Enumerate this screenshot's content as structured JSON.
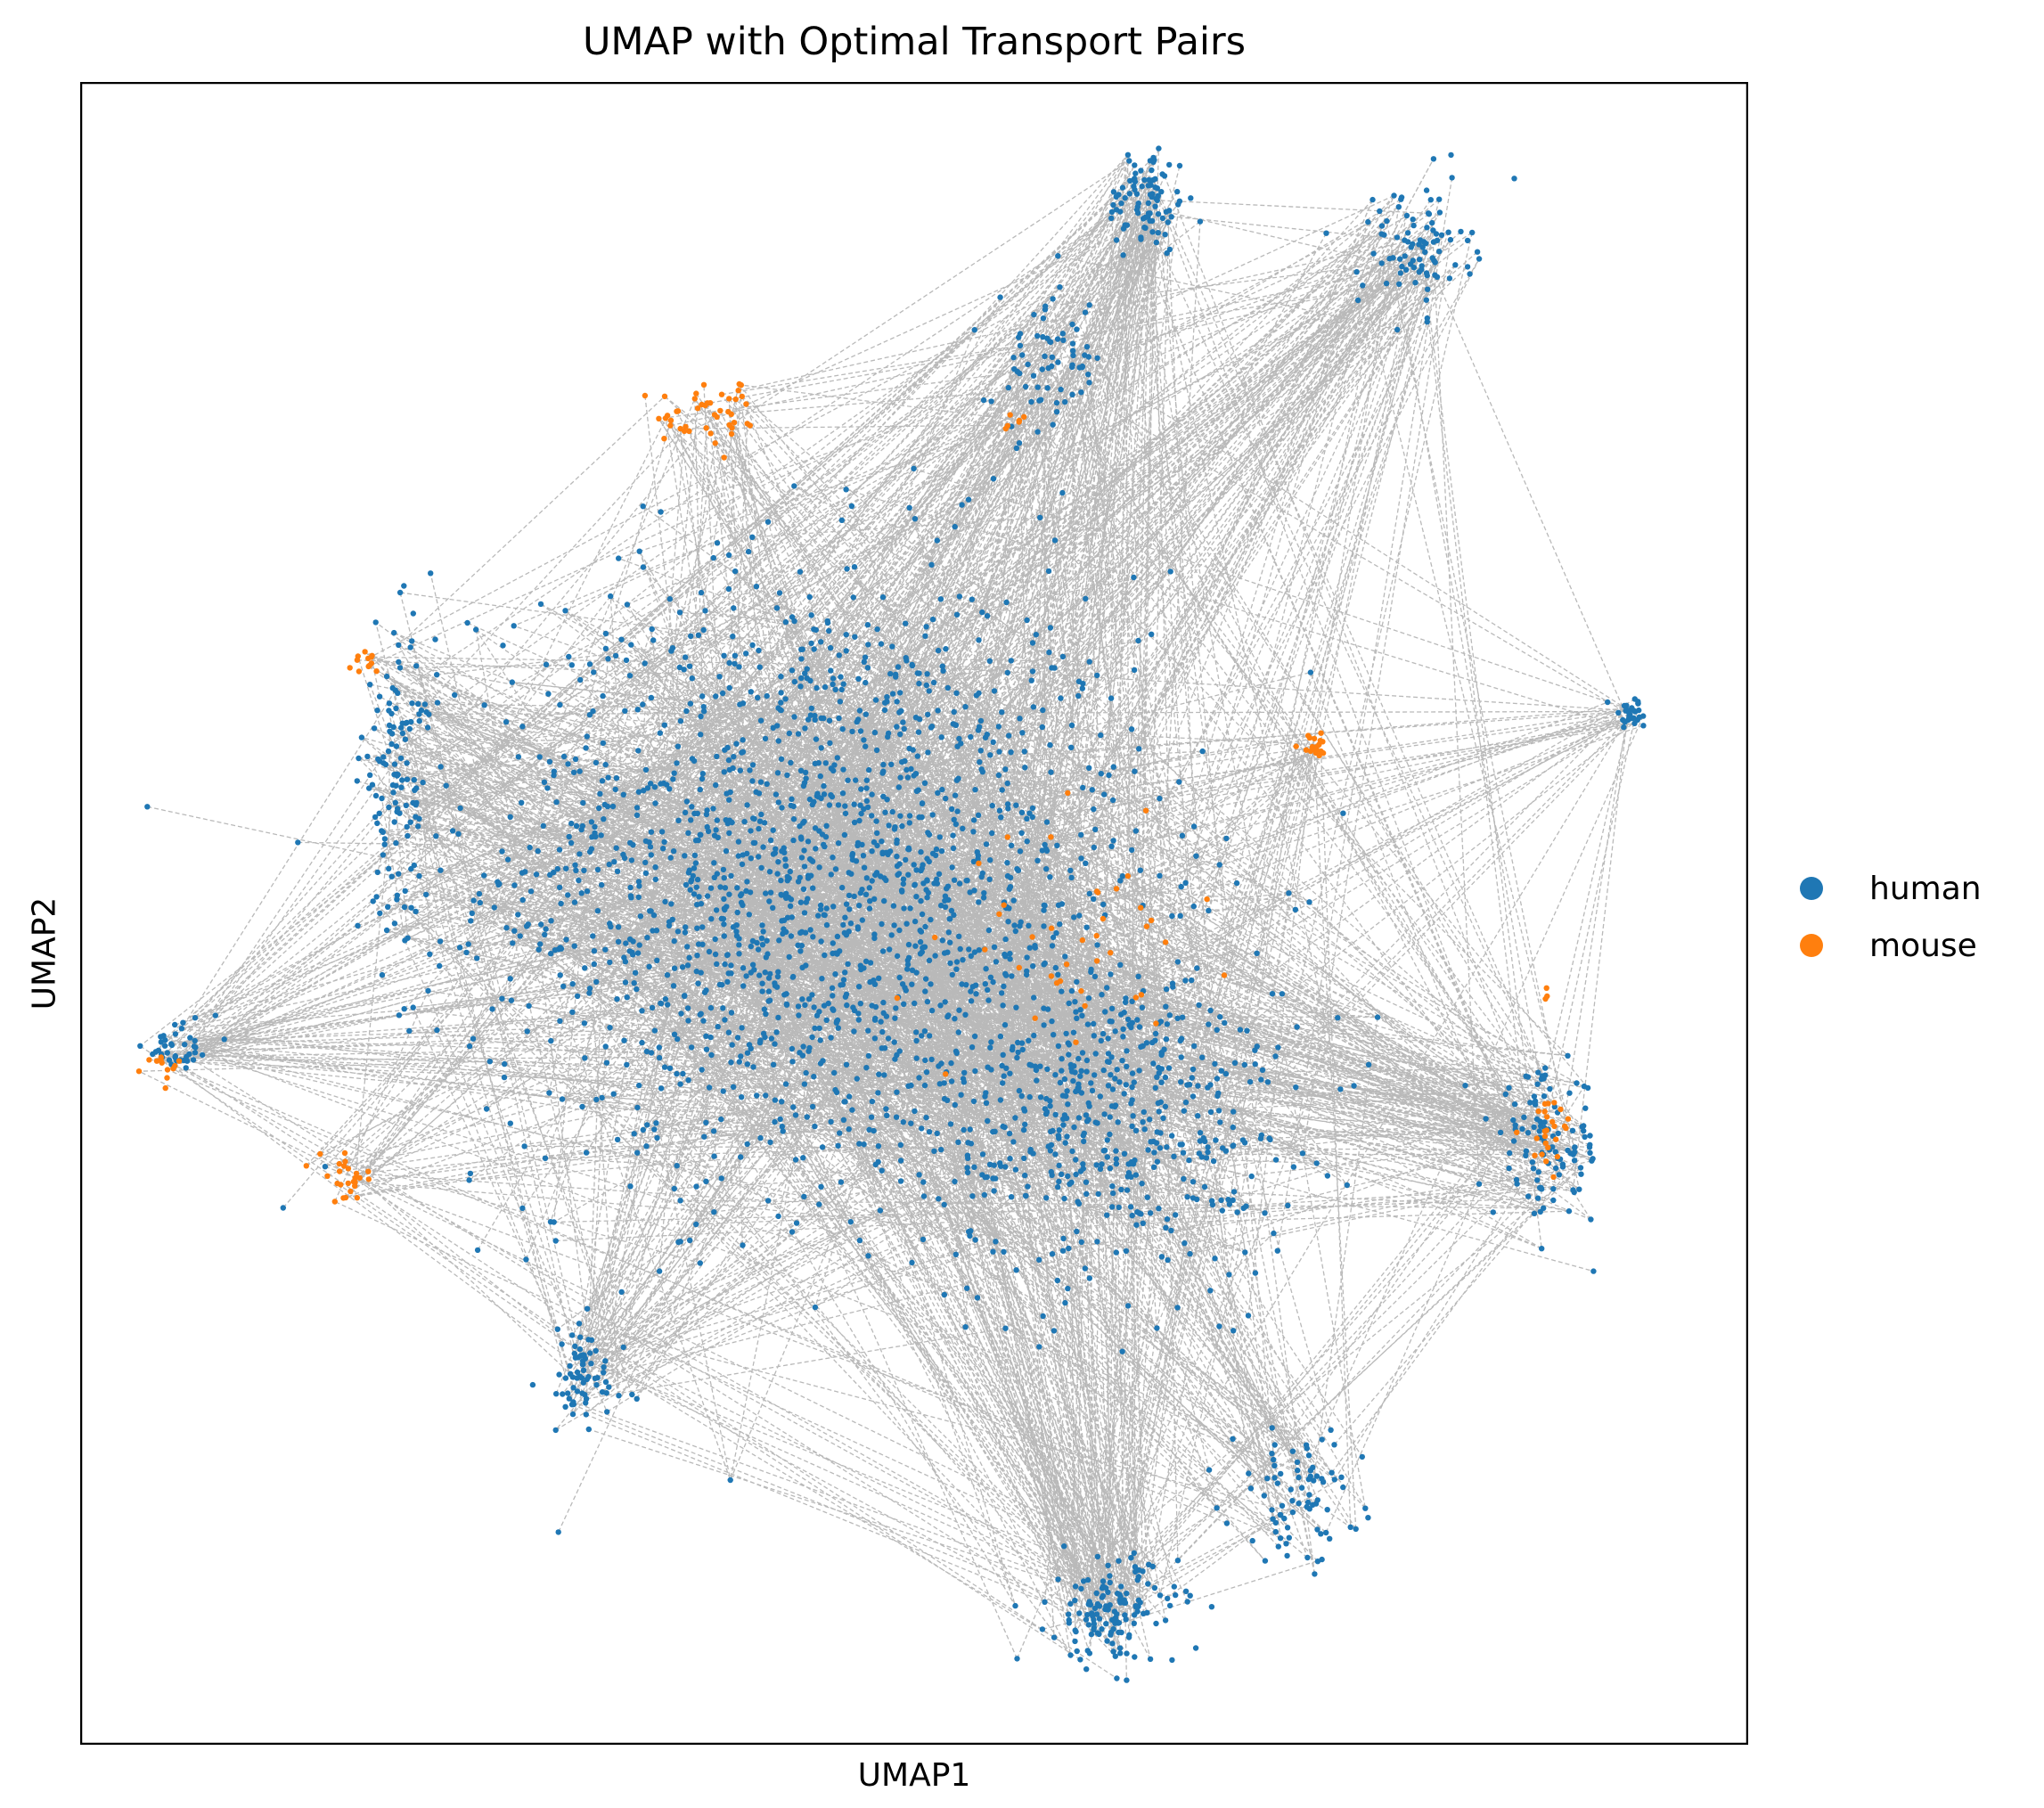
{
  "chart_data": {
    "type": "scatter",
    "title": "UMAP with Optimal Transport Pairs",
    "xlabel": "UMAP1",
    "ylabel": "UMAP2",
    "xlim": [
      0,
      100
    ],
    "ylim": [
      0,
      100
    ],
    "grid": false,
    "ticks": false,
    "legend_placement": "right",
    "line_color": "#808080",
    "series": [
      {
        "name": "human",
        "color": "#1f77b4"
      },
      {
        "name": "mouse",
        "color": "#ff7f0e"
      }
    ],
    "clusters": [
      {
        "series": "human",
        "center": [
          44,
          52
        ],
        "spread": [
          18,
          17
        ],
        "count": 1700
      },
      {
        "series": "human",
        "center": [
          62,
          38
        ],
        "spread": [
          10,
          9
        ],
        "count": 500
      },
      {
        "series": "human",
        "center": [
          64,
          93
        ],
        "spread": [
          2.2,
          3.0
        ],
        "count": 90
      },
      {
        "series": "human",
        "center": [
          80,
          90
        ],
        "spread": [
          3.0,
          3.5
        ],
        "count": 90
      },
      {
        "series": "human",
        "center": [
          93,
          62
        ],
        "spread": [
          1.2,
          0.8
        ],
        "count": 30
      },
      {
        "series": "human",
        "center": [
          62,
          8
        ],
        "spread": [
          3.5,
          3.0
        ],
        "count": 140
      },
      {
        "series": "human",
        "center": [
          73,
          15
        ],
        "spread": [
          3.5,
          3.5
        ],
        "count": 80
      },
      {
        "series": "human",
        "center": [
          30,
          22
        ],
        "spread": [
          2.5,
          3.0
        ],
        "count": 70
      },
      {
        "series": "human",
        "center": [
          6,
          42
        ],
        "spread": [
          2.0,
          1.5
        ],
        "count": 40
      },
      {
        "series": "human",
        "center": [
          19,
          58
        ],
        "spread": [
          2.0,
          8.0
        ],
        "count": 120
      },
      {
        "series": "human",
        "center": [
          88,
          36
        ],
        "spread": [
          3.0,
          4.0
        ],
        "count": 110
      },
      {
        "series": "human",
        "center": [
          58,
          83
        ],
        "spread": [
          3.0,
          4.0
        ],
        "count": 70
      },
      {
        "series": "mouse",
        "center": [
          38,
          80
        ],
        "spread": [
          3.0,
          1.8
        ],
        "count": 45
      },
      {
        "series": "mouse",
        "center": [
          16,
          34
        ],
        "spread": [
          1.5,
          1.2
        ],
        "count": 25
      },
      {
        "series": "mouse",
        "center": [
          5,
          41
        ],
        "spread": [
          1.0,
          0.8
        ],
        "count": 12
      },
      {
        "series": "mouse",
        "center": [
          74,
          60
        ],
        "spread": [
          0.8,
          0.6
        ],
        "count": 18
      },
      {
        "series": "mouse",
        "center": [
          88,
          37
        ],
        "spread": [
          1.5,
          2.0
        ],
        "count": 25
      },
      {
        "series": "mouse",
        "center": [
          17,
          65
        ],
        "spread": [
          1.0,
          1.0
        ],
        "count": 12
      },
      {
        "series": "mouse",
        "center": [
          88,
          45
        ],
        "spread": [
          0.5,
          0.5
        ],
        "count": 3
      },
      {
        "series": "mouse",
        "center": [
          56,
          80
        ],
        "spread": [
          1.0,
          0.8
        ],
        "count": 6
      },
      {
        "series": "mouse",
        "center": [
          60,
          48
        ],
        "spread": [
          6.0,
          6.0
        ],
        "count": 40
      }
    ]
  }
}
